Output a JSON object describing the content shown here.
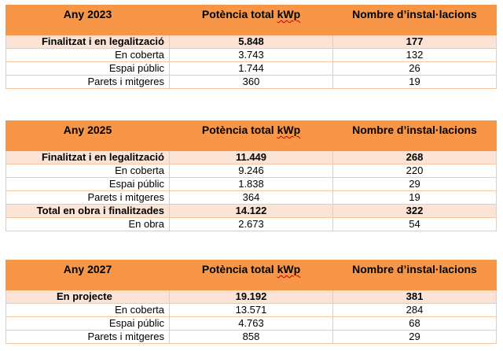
{
  "tables": [
    {
      "year_label": "Any 2023",
      "col2_prefix": "Potència total ",
      "col2_unit": "kWp",
      "col3_label": "Nombre d’instal·lacions",
      "rows": [
        {
          "label": "Finalitzat i en legalització",
          "power": "5.848",
          "count": "177",
          "bold": true
        },
        {
          "label": "En coberta",
          "power": "3.743",
          "count": "132",
          "bold": false
        },
        {
          "label": "Espai públic",
          "power": "1.744",
          "count": "26",
          "bold": false
        },
        {
          "label": "Parets i mitgeres",
          "power": "360",
          "count": "19",
          "bold": false
        }
      ]
    },
    {
      "year_label": "Any 2025",
      "col2_prefix": "Potència total ",
      "col2_unit": "kWp",
      "col3_label": "Nombre d’instal·lacions",
      "rows": [
        {
          "label": "Finalitzat i en legalització",
          "power": "11.449",
          "count": "268",
          "bold": true
        },
        {
          "label": "En coberta",
          "power": "9.246",
          "count": "220",
          "bold": false
        },
        {
          "label": "Espai públic",
          "power": "1.838",
          "count": "29",
          "bold": false
        },
        {
          "label": "Parets i mitgeres",
          "power": "364",
          "count": "19",
          "bold": false
        },
        {
          "label": "Total en obra i finalitzades",
          "power": "14.122",
          "count": "322",
          "bold": true
        },
        {
          "label": "En obra",
          "power": "2.673",
          "count": "54",
          "bold": false
        }
      ]
    },
    {
      "year_label": "Any 2027",
      "col2_prefix": "Potència total ",
      "col2_unit": "kWp",
      "col3_label": "Nombre d’instal·lacions",
      "rows": [
        {
          "label": "En projecte",
          "power": "19.192",
          "count": "381",
          "bold": true
        },
        {
          "label": "En coberta",
          "power": "13.571",
          "count": "284",
          "bold": false
        },
        {
          "label": "Espai públic",
          "power": "4.763",
          "count": "68",
          "bold": false
        },
        {
          "label": "Parets i mitgeres",
          "power": "858",
          "count": "29",
          "bold": false
        }
      ]
    }
  ]
}
